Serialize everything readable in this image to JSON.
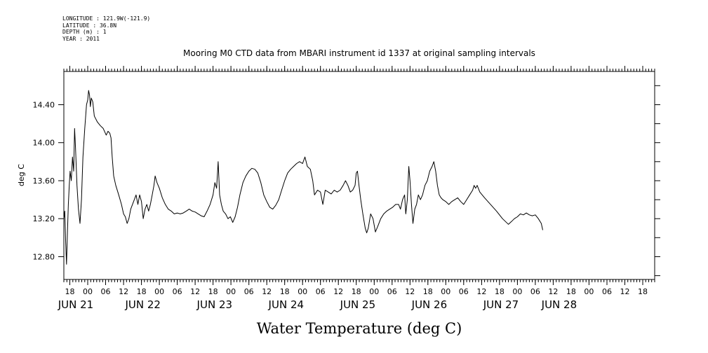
{
  "metadata": {
    "longitude_label": "LONGITUDE : 121.9W(-121.9)",
    "latitude_label": "LATITUDE : 36.8N",
    "depth_label": "DEPTH (m) : 1",
    "year_label": "YEAR : 2011"
  },
  "chart_data": {
    "type": "line",
    "title": "Mooring M0 CTD data from MBARI instrument id 1337 at original sampling intervals",
    "xlabel": "Water Temperature (deg C)",
    "ylabel": "deg C",
    "x_units": "hours since JUN 21 00:00 (2011)",
    "xlim": [
      -8,
      190
    ],
    "ylim": [
      12.56,
      14.75
    ],
    "y_ticks": [
      12.8,
      13.2,
      13.6,
      14.0,
      14.4
    ],
    "y_tick_labels": [
      "12.80",
      "13.20",
      "13.60",
      "14.00",
      "14.40"
    ],
    "hour_ticks": [
      {
        "x": -6,
        "label": "18"
      },
      {
        "x": 0,
        "label": "00"
      },
      {
        "x": 6,
        "label": "06"
      },
      {
        "x": 12,
        "label": "12"
      },
      {
        "x": 18,
        "label": "18"
      },
      {
        "x": 24,
        "label": "00"
      },
      {
        "x": 30,
        "label": "06"
      },
      {
        "x": 36,
        "label": "12"
      },
      {
        "x": 42,
        "label": "18"
      },
      {
        "x": 48,
        "label": "00"
      },
      {
        "x": 54,
        "label": "06"
      },
      {
        "x": 60,
        "label": "12"
      },
      {
        "x": 66,
        "label": "18"
      },
      {
        "x": 72,
        "label": "00"
      },
      {
        "x": 78,
        "label": "06"
      },
      {
        "x": 84,
        "label": "12"
      },
      {
        "x": 90,
        "label": "18"
      },
      {
        "x": 96,
        "label": "00"
      },
      {
        "x": 102,
        "label": "06"
      },
      {
        "x": 108,
        "label": "12"
      },
      {
        "x": 114,
        "label": "18"
      },
      {
        "x": 120,
        "label": "00"
      },
      {
        "x": 126,
        "label": "06"
      },
      {
        "x": 132,
        "label": "12"
      },
      {
        "x": 138,
        "label": "18"
      },
      {
        "x": 144,
        "label": "00"
      },
      {
        "x": 150,
        "label": "06"
      },
      {
        "x": 156,
        "label": "12"
      },
      {
        "x": 162,
        "label": "18"
      },
      {
        "x": 168,
        "label": "00"
      },
      {
        "x": 174,
        "label": "06"
      },
      {
        "x": 180,
        "label": "12"
      },
      {
        "x": 186,
        "label": "18"
      }
    ],
    "day_labels": [
      {
        "x": -4,
        "label": "JUN 21"
      },
      {
        "x": 18.5,
        "label": "JUN 22"
      },
      {
        "x": 42.5,
        "label": "JUN 23"
      },
      {
        "x": 66.5,
        "label": "JUN 24"
      },
      {
        "x": 90.5,
        "label": "JUN 25"
      },
      {
        "x": 114.5,
        "label": "JUN 26"
      },
      {
        "x": 138.5,
        "label": "JUN 27"
      },
      {
        "x": 158,
        "label": "JUN 28"
      }
    ],
    "series": [
      {
        "name": "Water Temperature",
        "points": [
          [
            -8,
            13.2
          ],
          [
            -7.7,
            13.28
          ],
          [
            -7.4,
            12.95
          ],
          [
            -7.1,
            12.72
          ],
          [
            -6.8,
            13.05
          ],
          [
            -6.5,
            13.35
          ],
          [
            -6.2,
            13.55
          ],
          [
            -5.9,
            13.7
          ],
          [
            -5.5,
            13.6
          ],
          [
            -5.1,
            13.85
          ],
          [
            -4.7,
            13.7
          ],
          [
            -4.4,
            14.15
          ],
          [
            -4.1,
            13.95
          ],
          [
            -3.6,
            13.55
          ],
          [
            -3.1,
            13.3
          ],
          [
            -2.6,
            13.15
          ],
          [
            -2.1,
            13.4
          ],
          [
            -1.6,
            13.85
          ],
          [
            -1,
            14.15
          ],
          [
            -0.4,
            14.4
          ],
          [
            0,
            14.45
          ],
          [
            0.3,
            14.55
          ],
          [
            0.6,
            14.5
          ],
          [
            0.9,
            14.38
          ],
          [
            1.2,
            14.47
          ],
          [
            1.7,
            14.43
          ],
          [
            2.2,
            14.28
          ],
          [
            3.2,
            14.22
          ],
          [
            4.2,
            14.18
          ],
          [
            5.2,
            14.15
          ],
          [
            6.2,
            14.08
          ],
          [
            6.8,
            14.12
          ],
          [
            7.4,
            14.1
          ],
          [
            7.8,
            14.05
          ],
          [
            8.2,
            13.85
          ],
          [
            8.7,
            13.65
          ],
          [
            9.4,
            13.55
          ],
          [
            10.4,
            13.45
          ],
          [
            11.3,
            13.35
          ],
          [
            12,
            13.25
          ],
          [
            12.6,
            13.22
          ],
          [
            13.2,
            13.15
          ],
          [
            13.8,
            13.2
          ],
          [
            14.4,
            13.3
          ],
          [
            15,
            13.35
          ],
          [
            15.6,
            13.4
          ],
          [
            16.2,
            13.45
          ],
          [
            16.8,
            13.35
          ],
          [
            17.4,
            13.45
          ],
          [
            18,
            13.38
          ],
          [
            18.6,
            13.2
          ],
          [
            19.2,
            13.3
          ],
          [
            19.8,
            13.35
          ],
          [
            20.4,
            13.28
          ],
          [
            21,
            13.35
          ],
          [
            21.6,
            13.45
          ],
          [
            22.2,
            13.55
          ],
          [
            22.6,
            13.65
          ],
          [
            23.2,
            13.58
          ],
          [
            24,
            13.52
          ],
          [
            25,
            13.42
          ],
          [
            26,
            13.35
          ],
          [
            27,
            13.3
          ],
          [
            28,
            13.28
          ],
          [
            29,
            13.25
          ],
          [
            30,
            13.26
          ],
          [
            31,
            13.25
          ],
          [
            32,
            13.26
          ],
          [
            33,
            13.28
          ],
          [
            34,
            13.3
          ],
          [
            35,
            13.28
          ],
          [
            36,
            13.27
          ],
          [
            37,
            13.25
          ],
          [
            38,
            13.23
          ],
          [
            39,
            13.22
          ],
          [
            40,
            13.28
          ],
          [
            41,
            13.35
          ],
          [
            42,
            13.45
          ],
          [
            42.6,
            13.58
          ],
          [
            43.2,
            13.52
          ],
          [
            43.7,
            13.8
          ],
          [
            44.2,
            13.45
          ],
          [
            44.8,
            13.35
          ],
          [
            45.4,
            13.28
          ],
          [
            46.2,
            13.25
          ],
          [
            47,
            13.2
          ],
          [
            47.8,
            13.22
          ],
          [
            48.6,
            13.16
          ],
          [
            49.4,
            13.22
          ],
          [
            50.2,
            13.32
          ],
          [
            51,
            13.45
          ],
          [
            52,
            13.58
          ],
          [
            53,
            13.65
          ],
          [
            54,
            13.7
          ],
          [
            55,
            13.73
          ],
          [
            56,
            13.72
          ],
          [
            57,
            13.68
          ],
          [
            58,
            13.58
          ],
          [
            59,
            13.45
          ],
          [
            60,
            13.38
          ],
          [
            61,
            13.32
          ],
          [
            62,
            13.3
          ],
          [
            63,
            13.34
          ],
          [
            64,
            13.4
          ],
          [
            65,
            13.5
          ],
          [
            66,
            13.6
          ],
          [
            67,
            13.68
          ],
          [
            68,
            13.72
          ],
          [
            69,
            13.75
          ],
          [
            70,
            13.78
          ],
          [
            71,
            13.8
          ],
          [
            72,
            13.78
          ],
          [
            72.8,
            13.85
          ],
          [
            73.6,
            13.75
          ],
          [
            74.6,
            13.72
          ],
          [
            75.4,
            13.6
          ],
          [
            76,
            13.45
          ],
          [
            77,
            13.5
          ],
          [
            78,
            13.48
          ],
          [
            78.8,
            13.35
          ],
          [
            79.6,
            13.5
          ],
          [
            80.6,
            13.48
          ],
          [
            81.6,
            13.46
          ],
          [
            82.6,
            13.5
          ],
          [
            83.6,
            13.48
          ],
          [
            84.6,
            13.5
          ],
          [
            85.6,
            13.55
          ],
          [
            86.4,
            13.6
          ],
          [
            87.2,
            13.55
          ],
          [
            88,
            13.48
          ],
          [
            88.8,
            13.5
          ],
          [
            89.6,
            13.55
          ],
          [
            90,
            13.68
          ],
          [
            90.4,
            13.7
          ],
          [
            90.9,
            13.55
          ],
          [
            91.5,
            13.4
          ],
          [
            92.2,
            13.25
          ],
          [
            93,
            13.1
          ],
          [
            93.5,
            13.05
          ],
          [
            94,
            13.1
          ],
          [
            94.8,
            13.25
          ],
          [
            95.6,
            13.2
          ],
          [
            96.4,
            13.06
          ],
          [
            97.2,
            13.12
          ],
          [
            98.2,
            13.2
          ],
          [
            99.2,
            13.25
          ],
          [
            100.2,
            13.28
          ],
          [
            101.2,
            13.3
          ],
          [
            102.2,
            13.32
          ],
          [
            103.2,
            13.35
          ],
          [
            104.2,
            13.35
          ],
          [
            104.8,
            13.3
          ],
          [
            105.5,
            13.4
          ],
          [
            106.2,
            13.45
          ],
          [
            106.6,
            13.25
          ],
          [
            107.1,
            13.4
          ],
          [
            107.6,
            13.75
          ],
          [
            108,
            13.6
          ],
          [
            108.5,
            13.35
          ],
          [
            109,
            13.15
          ],
          [
            109.6,
            13.3
          ],
          [
            110.2,
            13.35
          ],
          [
            110.8,
            13.45
          ],
          [
            111.5,
            13.4
          ],
          [
            112.2,
            13.45
          ],
          [
            113,
            13.55
          ],
          [
            113.8,
            13.6
          ],
          [
            114.6,
            13.7
          ],
          [
            115.4,
            13.75
          ],
          [
            116,
            13.8
          ],
          [
            116.6,
            13.7
          ],
          [
            117.2,
            13.55
          ],
          [
            117.8,
            13.45
          ],
          [
            118.4,
            13.42
          ],
          [
            119,
            13.4
          ],
          [
            120,
            13.38
          ],
          [
            121,
            13.35
          ],
          [
            122,
            13.38
          ],
          [
            123,
            13.4
          ],
          [
            124,
            13.42
          ],
          [
            125,
            13.38
          ],
          [
            126,
            13.35
          ],
          [
            127,
            13.4
          ],
          [
            128,
            13.45
          ],
          [
            129,
            13.5
          ],
          [
            129.5,
            13.55
          ],
          [
            130,
            13.52
          ],
          [
            130.5,
            13.55
          ],
          [
            131.4,
            13.48
          ],
          [
            133,
            13.42
          ],
          [
            135,
            13.35
          ],
          [
            137,
            13.28
          ],
          [
            139,
            13.2
          ],
          [
            141,
            13.14
          ],
          [
            142,
            13.17
          ],
          [
            143,
            13.2
          ],
          [
            144,
            13.22
          ],
          [
            145,
            13.25
          ],
          [
            146,
            13.24
          ],
          [
            147,
            13.26
          ],
          [
            148,
            13.24
          ],
          [
            149,
            13.23
          ],
          [
            150,
            13.24
          ],
          [
            151,
            13.2
          ],
          [
            152,
            13.15
          ],
          [
            152.5,
            13.08
          ]
        ]
      }
    ]
  }
}
